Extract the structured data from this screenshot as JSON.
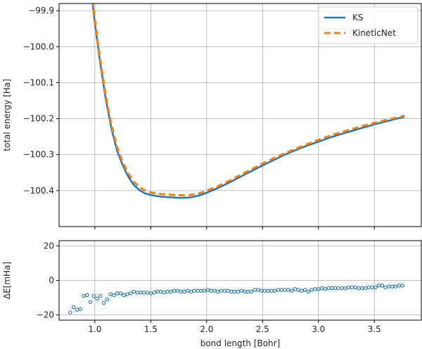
{
  "chart_data": [
    {
      "type": "line",
      "title": "",
      "xlabel": "",
      "ylabel": "total energy [Ha]",
      "xlim": [
        0.68,
        3.92
      ],
      "ylim": [
        -100.5,
        -99.88
      ],
      "yticks": [
        -99.9,
        -100.0,
        -100.1,
        -100.2,
        -100.3,
        -100.4
      ],
      "ytick_labels": [
        "−99.9",
        "−100.0",
        "−100.1",
        "−100.2",
        "−100.3",
        "−100.4"
      ],
      "xticks": [
        1.0,
        1.5,
        2.0,
        2.5,
        3.0,
        3.5
      ],
      "xtick_labels": [
        "",
        "",
        "",
        "",
        "",
        ""
      ],
      "grid": true,
      "legend_position": "top-right",
      "series": [
        {
          "name": "KS",
          "color": "#1f77b4",
          "style": "solid",
          "x": [
            0.98,
            1.0,
            1.05,
            1.1,
            1.15,
            1.2,
            1.25,
            1.3,
            1.35,
            1.4,
            1.45,
            1.5,
            1.55,
            1.6,
            1.65,
            1.7,
            1.75,
            1.8,
            1.85,
            1.9,
            1.95,
            2.0,
            2.1,
            2.2,
            2.3,
            2.4,
            2.5,
            2.6,
            2.7,
            2.8,
            2.9,
            3.0,
            3.1,
            3.2,
            3.3,
            3.4,
            3.5,
            3.6,
            3.7,
            3.77
          ],
          "y": [
            -99.88,
            -99.935,
            -100.05,
            -100.15,
            -100.23,
            -100.29,
            -100.33,
            -100.362,
            -100.385,
            -100.399,
            -100.408,
            -100.412,
            -100.415,
            -100.417,
            -100.418,
            -100.419,
            -100.42,
            -100.42,
            -100.419,
            -100.416,
            -100.412,
            -100.406,
            -100.393,
            -100.378,
            -100.362,
            -100.346,
            -100.33,
            -100.315,
            -100.3,
            -100.287,
            -100.275,
            -100.264,
            -100.253,
            -100.243,
            -100.234,
            -100.225,
            -100.216,
            -100.208,
            -100.2,
            -100.195
          ]
        },
        {
          "name": "KineticNet",
          "color": "#ff7f0e",
          "style": "dashed",
          "x": [
            0.98,
            1.0,
            1.05,
            1.1,
            1.15,
            1.2,
            1.25,
            1.3,
            1.35,
            1.4,
            1.45,
            1.5,
            1.55,
            1.6,
            1.65,
            1.7,
            1.75,
            1.8,
            1.85,
            1.9,
            1.95,
            2.0,
            2.1,
            2.2,
            2.3,
            2.4,
            2.5,
            2.6,
            2.7,
            2.8,
            2.9,
            3.0,
            3.1,
            3.2,
            3.3,
            3.4,
            3.5,
            3.6,
            3.7,
            3.77
          ],
          "y": [
            -99.87,
            -99.925,
            -100.04,
            -100.14,
            -100.22,
            -100.28,
            -100.322,
            -100.353,
            -100.376,
            -100.391,
            -100.4,
            -100.405,
            -100.408,
            -100.41,
            -100.411,
            -100.412,
            -100.413,
            -100.413,
            -100.412,
            -100.41,
            -100.406,
            -100.4,
            -100.388,
            -100.373,
            -100.357,
            -100.341,
            -100.325,
            -100.31,
            -100.296,
            -100.283,
            -100.271,
            -100.259,
            -100.248,
            -100.238,
            -100.229,
            -100.22,
            -100.212,
            -100.204,
            -100.197,
            -100.192
          ]
        }
      ]
    },
    {
      "type": "scatter",
      "title": "",
      "xlabel": "bond length [Bohr]",
      "ylabel": "ΔE[mHa]",
      "xlim": [
        0.68,
        3.92
      ],
      "ylim": [
        -23,
        23
      ],
      "yticks": [
        20,
        0,
        -20
      ],
      "ytick_labels": [
        "20",
        "0",
        "−20"
      ],
      "xticks": [
        1.0,
        1.5,
        2.0,
        2.5,
        3.0,
        3.5
      ],
      "xtick_labels": [
        "1.0",
        "1.5",
        "2.0",
        "2.5",
        "3.0",
        "3.5"
      ],
      "grid": true,
      "series": [
        {
          "color": "#1f77b4",
          "x": [
            0.78,
            0.81,
            0.84,
            0.87,
            0.9,
            0.93,
            0.96,
            0.99,
            1.02,
            1.05,
            1.08,
            1.11,
            1.14,
            1.17,
            1.2,
            1.23,
            1.26,
            1.29,
            1.32,
            1.35,
            1.38,
            1.41,
            1.44,
            1.47,
            1.5,
            1.53,
            1.56,
            1.59,
            1.62,
            1.65,
            1.68,
            1.71,
            1.74,
            1.77,
            1.8,
            1.83,
            1.86,
            1.89,
            1.92,
            1.95,
            1.98,
            2.01,
            2.04,
            2.07,
            2.1,
            2.13,
            2.16,
            2.19,
            2.22,
            2.25,
            2.28,
            2.31,
            2.34,
            2.37,
            2.4,
            2.43,
            2.46,
            2.49,
            2.52,
            2.55,
            2.58,
            2.61,
            2.64,
            2.67,
            2.7,
            2.73,
            2.76,
            2.79,
            2.82,
            2.85,
            2.88,
            2.91,
            2.94,
            2.97,
            3.0,
            3.03,
            3.06,
            3.09,
            3.12,
            3.15,
            3.18,
            3.21,
            3.24,
            3.27,
            3.3,
            3.33,
            3.36,
            3.39,
            3.42,
            3.45,
            3.48,
            3.51,
            3.54,
            3.57,
            3.6,
            3.63,
            3.66,
            3.69,
            3.72,
            3.75
          ],
          "y": [
            -18.5,
            -15.5,
            -17,
            -16.5,
            -9,
            -8.5,
            -12.5,
            -9,
            -10.5,
            -9,
            -13,
            -11,
            -8,
            -8.5,
            -7.5,
            -7.5,
            -8.5,
            -8,
            -7.5,
            -6.5,
            -7,
            -7,
            -7,
            -7,
            -7.5,
            -7,
            -6.5,
            -6.5,
            -7,
            -6.5,
            -6.5,
            -6,
            -6,
            -6.5,
            -6.5,
            -6,
            -6.5,
            -6,
            -6,
            -6,
            -6,
            -5.5,
            -6,
            -6,
            -6.5,
            -6,
            -6,
            -6,
            -6.5,
            -6.5,
            -6.5,
            -6,
            -6.5,
            -6.5,
            -6.5,
            -5.5,
            -5.5,
            -6,
            -6,
            -6,
            -6,
            -6,
            -5.5,
            -5.5,
            -5.5,
            -5.5,
            -6,
            -5,
            -5.5,
            -6,
            -5.5,
            -6.5,
            -5.5,
            -5,
            -5,
            -4.5,
            -5,
            -4.5,
            -4.5,
            -4.5,
            -4.5,
            -4.5,
            -4.5,
            -4,
            -4,
            -4,
            -4.5,
            -4.5,
            -4.5,
            -4,
            -4,
            -4,
            -3,
            -3,
            -4,
            -3.5,
            -3.5,
            -3.5,
            -3,
            -3
          ]
        }
      ]
    }
  ]
}
